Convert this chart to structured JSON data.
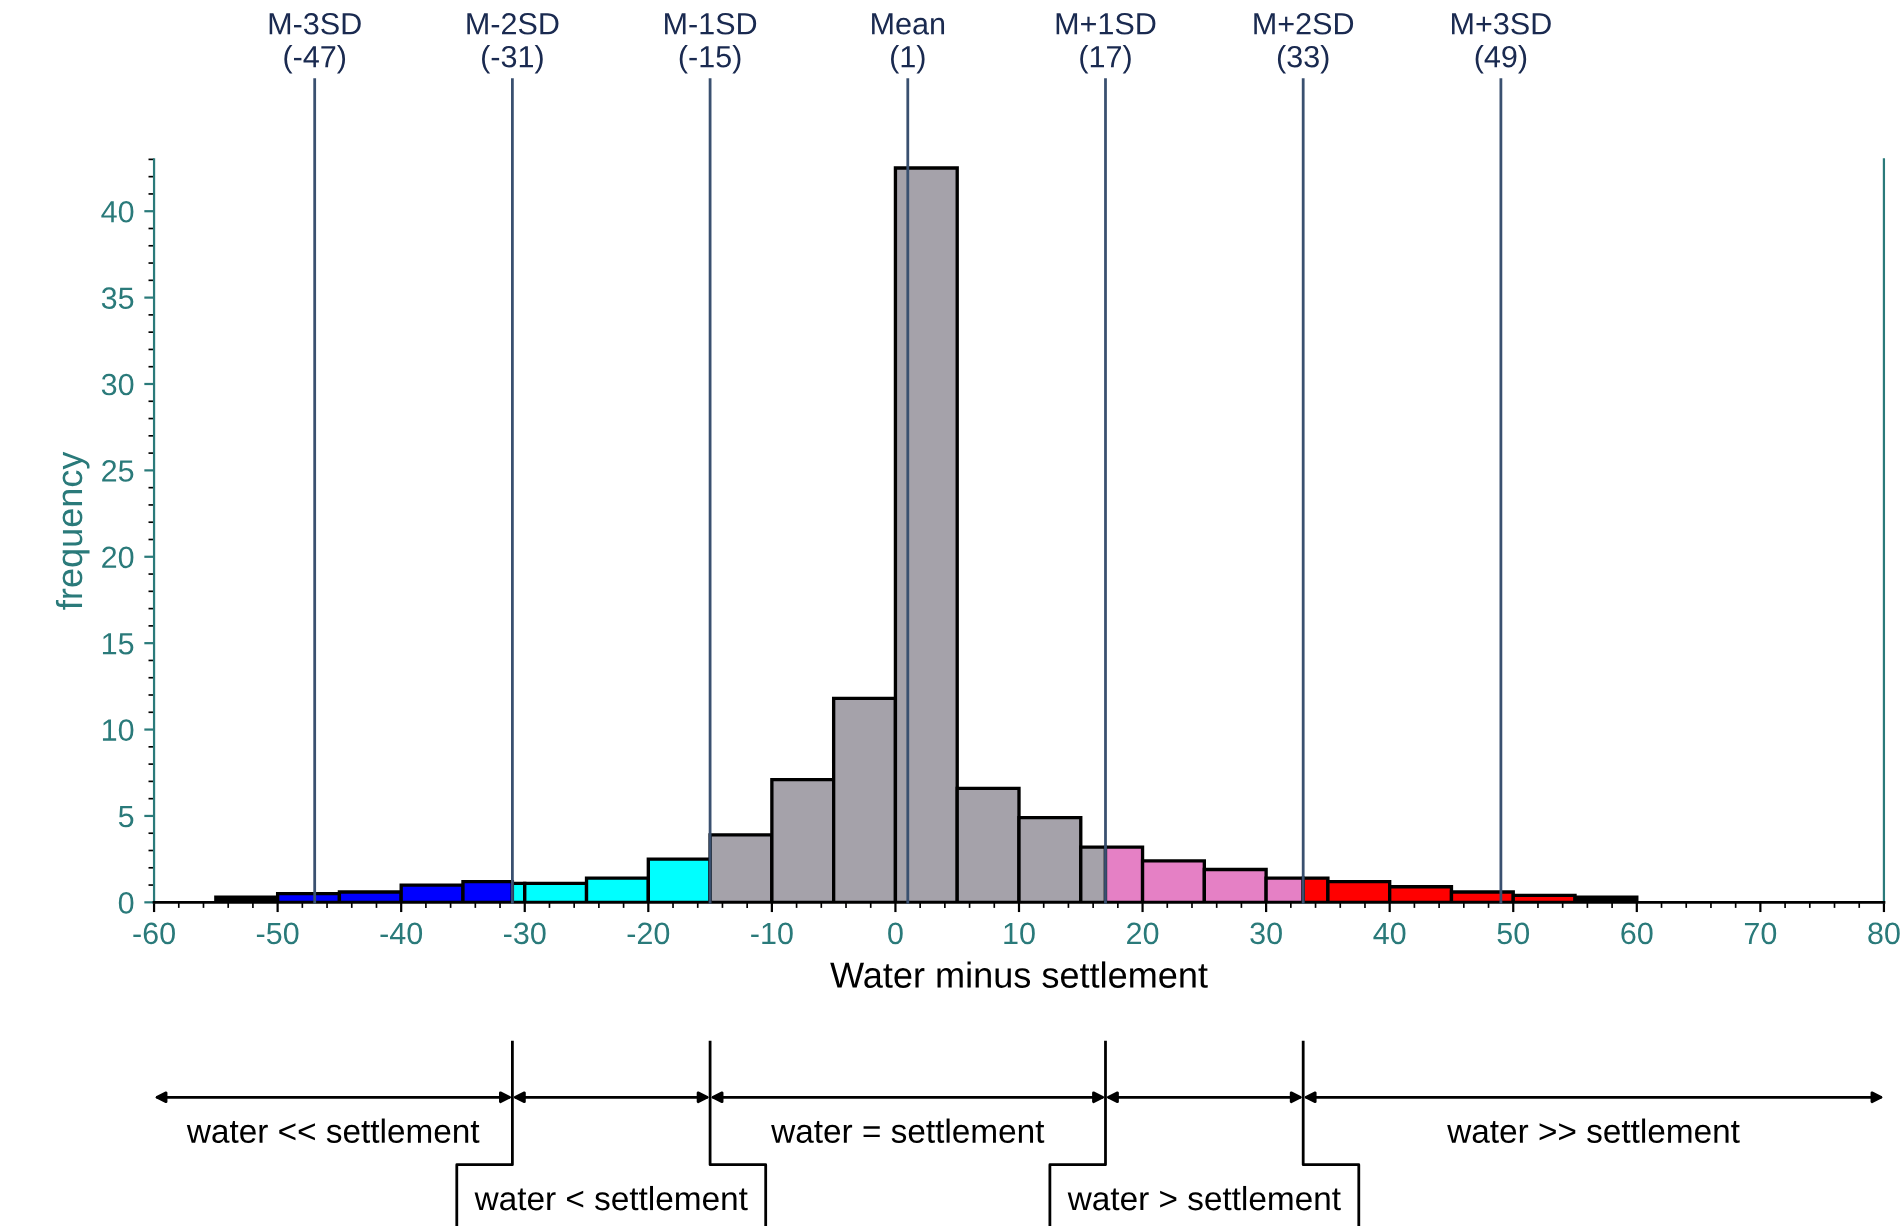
{
  "chart_data": {
    "type": "histogram",
    "xlabel": "Water minus settlement",
    "ylabel": "frequency",
    "bins": [
      -55,
      -50,
      -45,
      -40,
      -35,
      -31,
      -30,
      -25,
      -20,
      -15,
      -10,
      -5,
      0,
      5,
      10,
      15,
      17,
      20,
      25,
      30,
      33,
      35,
      40,
      45,
      50,
      55,
      60
    ],
    "values": [
      0.3,
      0.5,
      0.6,
      1.0,
      1.2,
      1.1,
      1.1,
      1.4,
      2.5,
      3.9,
      7.1,
      11.8,
      42.5,
      6.6,
      4.9,
      3.2,
      3.2,
      2.4,
      1.9,
      1.4,
      1.4,
      1.2,
      0.9,
      0.6,
      0.4,
      0.3
    ],
    "colors": [
      "#000000",
      "#0000ff",
      "#0000ff",
      "#0000ff",
      "#0000ff",
      "#00ffff",
      "#00ffff",
      "#00ffff",
      "#00ffff",
      "#a5a2aa",
      "#a5a2aa",
      "#a5a2aa",
      "#a5a2aa",
      "#a5a2aa",
      "#a5a2aa",
      "#a5a2aa",
      "#e580c5",
      "#e580c5",
      "#e580c5",
      "#e580c5",
      "#ff0000",
      "#ff0000",
      "#ff0000",
      "#ff0000",
      "#ff0000",
      "#000000"
    ],
    "xlim": [
      -60,
      80
    ],
    "ylim": [
      0,
      43
    ],
    "xticks": [
      -60,
      -50,
      -40,
      -30,
      -20,
      -10,
      0,
      10,
      20,
      30,
      40,
      50,
      60,
      70,
      80
    ],
    "yticks": [
      0,
      5,
      10,
      15,
      20,
      25,
      30,
      35,
      40
    ],
    "grid": false,
    "ref_lines": [
      {
        "axis": "x",
        "value": -47,
        "label": "M-3SD\n(-47)",
        "color": "#3a5070"
      },
      {
        "axis": "x",
        "value": -31,
        "label": "M-2SD\n(-31)",
        "color": "#3a5070"
      },
      {
        "axis": "x",
        "value": -15,
        "label": "M-1SD\n(-15)",
        "color": "#3a5070"
      },
      {
        "axis": "x",
        "value": 1,
        "label": "Mean\n(1)",
        "color": "#3a5070"
      },
      {
        "axis": "x",
        "value": 17,
        "label": "M+1SD\n(17)",
        "color": "#3a5070"
      },
      {
        "axis": "x",
        "value": 33,
        "label": "M+2SD\n(33)",
        "color": "#3a5070"
      },
      {
        "axis": "x",
        "value": 49,
        "label": "M+3SD\n(49)",
        "color": "#3a5070"
      }
    ],
    "annotations": [
      "water << settlement",
      "water < settlement",
      "water = settlement",
      "water > settlement",
      "water >> settlement"
    ]
  }
}
